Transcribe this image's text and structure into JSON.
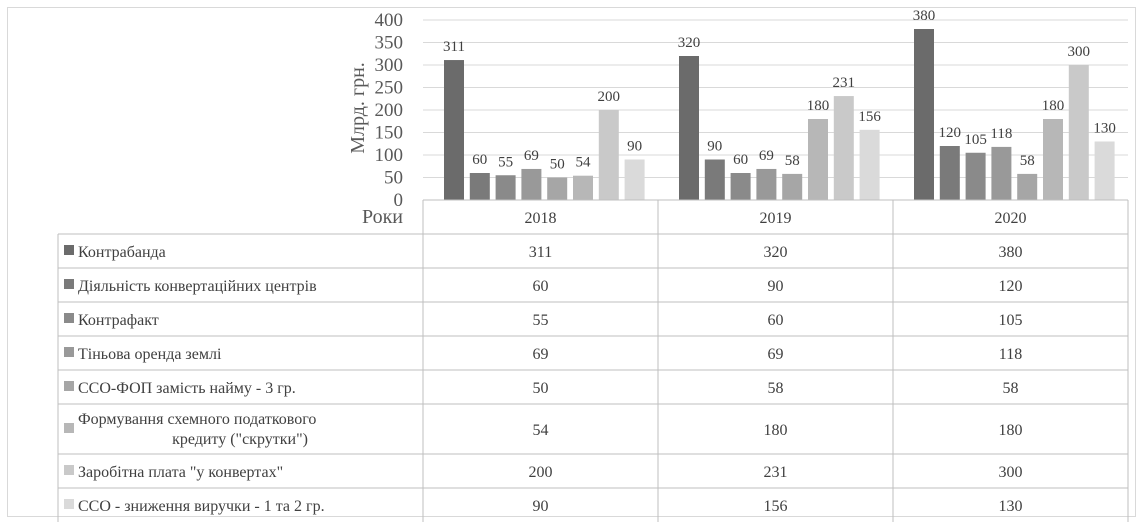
{
  "chart_data": {
    "type": "bar",
    "xlabel": "Роки",
    "ylabel": "Млрд. грн.",
    "ylim": [
      0,
      400
    ],
    "yticks": [
      0,
      50,
      100,
      150,
      200,
      250,
      300,
      350,
      400
    ],
    "categories": [
      "2018",
      "2019",
      "2020"
    ],
    "grid": true,
    "legend": "data table below plot",
    "series": [
      {
        "name": "Контрабанда",
        "color": "#6b6b6b",
        "values": [
          311,
          320,
          380
        ]
      },
      {
        "name": "Діяльність конвертаційних центрів",
        "color": "#7a7a7a",
        "values": [
          60,
          90,
          120
        ]
      },
      {
        "name": "Контрафакт",
        "color": "#8a8a8a",
        "values": [
          55,
          60,
          105
        ]
      },
      {
        "name": "Тіньова оренда землі",
        "color": "#999999",
        "values": [
          69,
          69,
          118
        ]
      },
      {
        "name": "ССО-ФОП замість найму - 3 гр.",
        "color": "#a6a6a6",
        "values": [
          50,
          58,
          58
        ]
      },
      {
        "name": "Формування схемного податкового кредиту (\"скрутки\")",
        "color": "#b7b7b7",
        "values": [
          54,
          180,
          180
        ]
      },
      {
        "name": "Заробітна плата \"у конвертах\"",
        "color": "#c9c9c9",
        "values": [
          200,
          231,
          300
        ]
      },
      {
        "name": "ССО - зниження виручки - 1 та 2 гр.",
        "color": "#dadada",
        "values": [
          90,
          156,
          130
        ]
      }
    ]
  }
}
